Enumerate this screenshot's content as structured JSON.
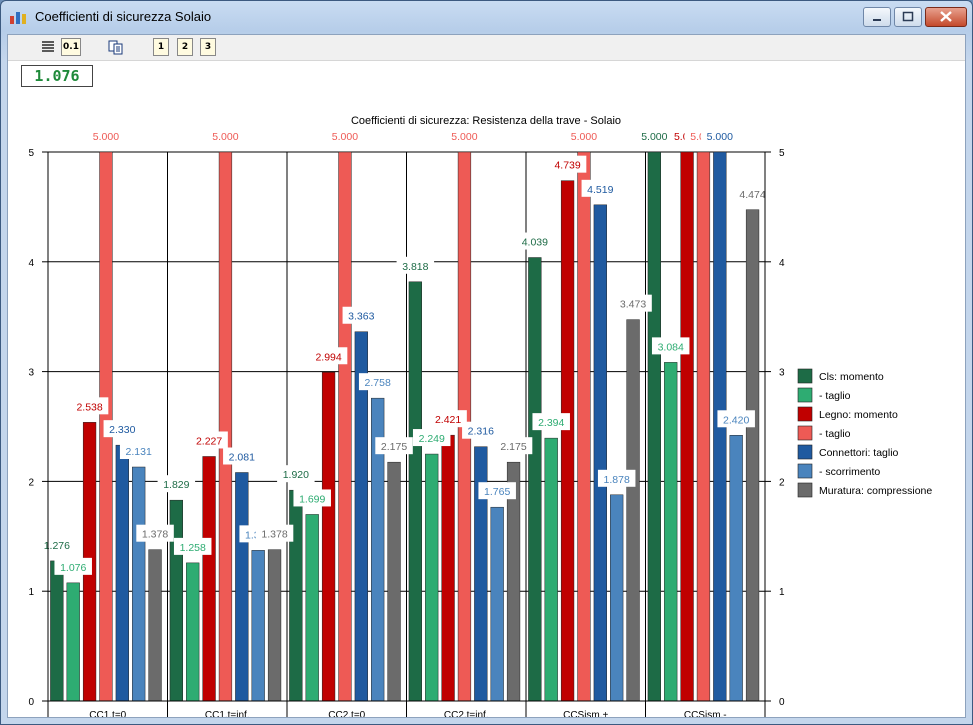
{
  "window": {
    "title": "Coefficienti di sicurezza Solaio"
  },
  "toolbar": {
    "icons": [
      "align-icon",
      "decimals-icon",
      "copy-icon"
    ],
    "decimals_label": "0.1",
    "view_buttons": [
      "1",
      "2",
      "3"
    ]
  },
  "value_display": "1.076",
  "colors": {
    "cls_momento": "#1d6b46",
    "cls_taglio": "#2eac72",
    "legno_momento": "#c00000",
    "legno_taglio": "#ee5a55",
    "conn_taglio": "#1f5aa0",
    "conn_scorrimento": "#4a84bd",
    "muratura": "#6b6b6b"
  },
  "chart_data": {
    "type": "bar",
    "title": "Coefficienti di sicurezza: Resistenza della trave - Solaio",
    "categories": [
      "CC1,t=0",
      "CC1,t=inf.",
      "CC2,t=0",
      "CC2,t=inf.",
      "CCSism.+",
      "CCSism.-"
    ],
    "ylim": [
      0,
      5
    ],
    "yticks": [
      "0",
      "1",
      "2",
      "3",
      "4",
      "5"
    ],
    "grid": true,
    "legend_position": "right",
    "series": [
      {
        "name": "Cls: momento",
        "values": [
          1.276,
          1.829,
          1.92,
          3.818,
          4.039,
          5.0
        ]
      },
      {
        "name": "- taglio",
        "values": [
          1.076,
          1.258,
          1.699,
          2.249,
          2.394,
          3.084
        ]
      },
      {
        "name": "Legno: momento",
        "values": [
          2.538,
          2.227,
          2.994,
          2.421,
          4.739,
          5.0
        ]
      },
      {
        "name": "- taglio",
        "values": [
          5.0,
          5.0,
          5.0,
          5.0,
          5.0,
          5.0
        ]
      },
      {
        "name": "Connettori: taglio",
        "values": [
          2.33,
          2.081,
          3.363,
          2.316,
          4.519,
          5.0
        ]
      },
      {
        "name": "- scorrimento",
        "values": [
          2.131,
          1.372,
          2.758,
          1.765,
          1.878,
          2.42
        ]
      },
      {
        "name": "Muratura: compressione",
        "values": [
          1.378,
          1.378,
          2.175,
          2.175,
          3.473,
          4.474
        ]
      }
    ]
  }
}
